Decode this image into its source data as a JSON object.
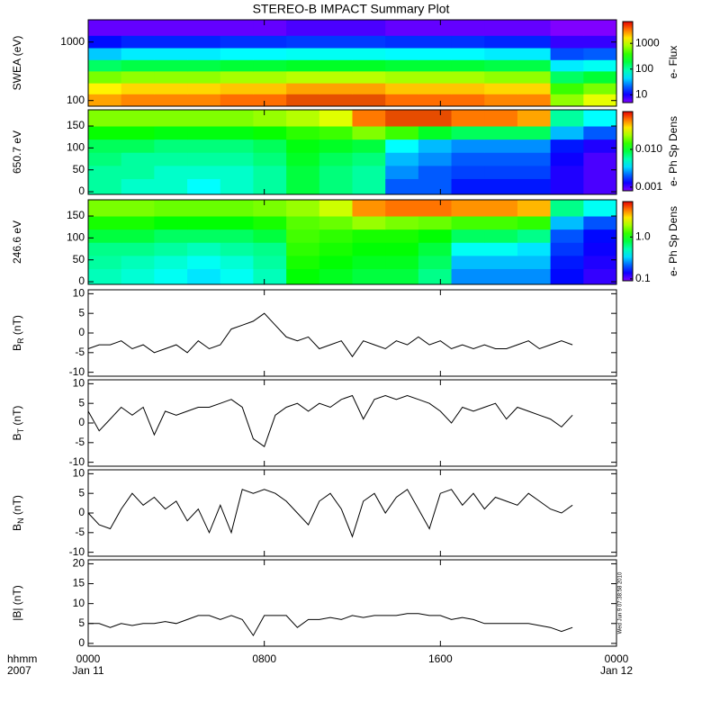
{
  "title": "STEREO-B IMPACT Summary Plot",
  "timestamp": "Wed Jun  9 07:38:58 2010",
  "x_axis": {
    "xlim": [
      0,
      24
    ],
    "xticks": [
      {
        "value": 0,
        "label": "0000"
      },
      {
        "value": 8,
        "label": "0800"
      },
      {
        "value": 16,
        "label": "1600"
      },
      {
        "value": 24,
        "label": "0000"
      }
    ],
    "date_labels": [
      {
        "value": 0,
        "label": "Jan 11"
      },
      {
        "value": 24,
        "label": "Jan 12"
      }
    ],
    "axis_labels": [
      "hhmm",
      "2007"
    ]
  },
  "chart_data": [
    {
      "type": "heatmap",
      "ylabel": "SWEA (eV)",
      "ylog": true,
      "ylim": [
        80,
        2400
      ],
      "yticks": [
        100,
        1000
      ],
      "x_edges": [
        0,
        1.5,
        3,
        4.5,
        6,
        7.5,
        9,
        10.5,
        12,
        13.5,
        15,
        16.5,
        18,
        19.5,
        21,
        22.5,
        24
      ],
      "y_edges": [
        80,
        130,
        200,
        320,
        500,
        800,
        1300,
        2400
      ],
      "values": [
        [
          2500,
          3000,
          3000,
          3000,
          3500,
          3500,
          4000,
          4000,
          4000,
          3500,
          3500,
          3500,
          3000,
          3000,
          700,
          1200
        ],
        [
          1500,
          1800,
          1800,
          1800,
          2000,
          2000,
          2500,
          2500,
          2500,
          2000,
          2000,
          2000,
          1800,
          1800,
          400,
          600
        ],
        [
          600,
          700,
          700,
          700,
          800,
          800,
          900,
          900,
          900,
          800,
          800,
          800,
          700,
          700,
          150,
          200
        ],
        [
          150,
          180,
          180,
          180,
          200,
          200,
          220,
          220,
          220,
          200,
          200,
          200,
          180,
          180,
          50,
          60
        ],
        [
          40,
          50,
          50,
          50,
          55,
          55,
          60,
          60,
          60,
          55,
          55,
          55,
          50,
          50,
          18,
          20
        ],
        [
          12,
          14,
          14,
          14,
          15,
          15,
          16,
          16,
          16,
          15,
          15,
          15,
          14,
          14,
          8,
          8
        ],
        [
          6,
          6,
          6,
          6,
          6,
          6,
          7,
          7,
          7,
          6,
          6,
          6,
          6,
          6,
          5,
          5
        ]
      ],
      "clim": [
        5,
        7000
      ],
      "cticks": [
        10,
        100,
        1000
      ],
      "clabel": "e- Flux"
    },
    {
      "type": "heatmap",
      "ylabel": "650.7 eV",
      "ylog": false,
      "ylim": [
        -6,
        187
      ],
      "yticks": [
        0,
        50,
        100,
        150
      ],
      "x_edges": [
        0,
        1.5,
        3,
        4.5,
        6,
        7.5,
        9,
        10.5,
        12,
        13.5,
        15,
        16.5,
        18,
        19.5,
        21,
        22.5,
        24
      ],
      "y_edges": [
        0,
        30,
        60,
        90,
        120,
        150,
        180
      ],
      "values": [
        [
          0.006,
          0.005,
          0.005,
          0.004,
          0.005,
          0.006,
          0.009,
          0.007,
          0.006,
          0.002,
          0.002,
          0.0015,
          0.0015,
          0.0015,
          0.0012,
          0.001
        ],
        [
          0.006,
          0.006,
          0.005,
          0.005,
          0.005,
          0.006,
          0.009,
          0.007,
          0.006,
          0.0025,
          0.002,
          0.0018,
          0.0018,
          0.0018,
          0.0012,
          0.001
        ],
        [
          0.007,
          0.006,
          0.006,
          0.006,
          0.006,
          0.007,
          0.01,
          0.008,
          0.007,
          0.003,
          0.0025,
          0.002,
          0.002,
          0.002,
          0.0013,
          0.001
        ],
        [
          0.008,
          0.008,
          0.007,
          0.007,
          0.007,
          0.008,
          0.011,
          0.01,
          0.009,
          0.004,
          0.003,
          0.0025,
          0.0025,
          0.0025,
          0.0015,
          0.0012
        ],
        [
          0.012,
          0.012,
          0.011,
          0.011,
          0.011,
          0.012,
          0.014,
          0.015,
          0.02,
          0.015,
          0.01,
          0.008,
          0.008,
          0.008,
          0.003,
          0.002
        ],
        [
          0.02,
          0.02,
          0.02,
          0.02,
          0.02,
          0.022,
          0.025,
          0.03,
          0.06,
          0.07,
          0.07,
          0.06,
          0.06,
          0.05,
          0.006,
          0.004
        ]
      ],
      "clim": [
        0.0008,
        0.1
      ],
      "cticks": [
        0.001,
        {
          "value": 0.01,
          "label": "0.010"
        }
      ],
      "clabel": "e- Ph Sp Dens"
    },
    {
      "type": "heatmap",
      "ylabel": "246.6 eV",
      "ylog": false,
      "ylim": [
        -6,
        187
      ],
      "yticks": [
        0,
        50,
        100,
        150
      ],
      "x_edges": [
        0,
        1.5,
        3,
        4.5,
        6,
        7.5,
        9,
        10.5,
        12,
        13.5,
        15,
        16.5,
        18,
        19.5,
        21,
        22.5,
        24
      ],
      "y_edges": [
        0,
        30,
        60,
        90,
        120,
        150,
        180
      ],
      "values": [
        [
          0.5,
          0.45,
          0.4,
          0.35,
          0.4,
          0.5,
          1.0,
          0.9,
          0.8,
          0.8,
          0.6,
          0.25,
          0.25,
          0.25,
          0.15,
          0.12
        ],
        [
          0.55,
          0.5,
          0.45,
          0.4,
          0.45,
          0.55,
          1.1,
          1.0,
          0.9,
          0.9,
          0.7,
          0.3,
          0.3,
          0.3,
          0.16,
          0.13
        ],
        [
          0.6,
          0.6,
          0.55,
          0.5,
          0.55,
          0.6,
          1.2,
          1.1,
          1.0,
          1.0,
          0.8,
          0.4,
          0.4,
          0.35,
          0.18,
          0.14
        ],
        [
          0.8,
          0.8,
          0.7,
          0.7,
          0.7,
          0.8,
          1.3,
          1.2,
          1.1,
          1.1,
          1.0,
          0.7,
          0.7,
          0.6,
          0.2,
          0.15
        ],
        [
          1.1,
          1.1,
          1.0,
          1.0,
          1.0,
          1.1,
          1.4,
          1.5,
          1.8,
          1.6,
          1.5,
          1.3,
          1.3,
          1.2,
          0.3,
          0.2
        ],
        [
          1.6,
          1.6,
          1.5,
          1.5,
          1.5,
          1.6,
          1.8,
          2.2,
          4,
          4.5,
          4.5,
          4,
          4,
          3.5,
          0.6,
          0.4
        ]
      ],
      "clim": [
        0.09,
        7
      ],
      "cticks": [
        0.1,
        {
          "value": 1,
          "label": "1.0"
        }
      ],
      "clabel": "e- Ph Sp Dens"
    },
    {
      "type": "line",
      "ylabel": "B",
      "ylabel_sub": "R",
      "ylabel_unit": "(nT)",
      "color": "#000000",
      "ylim": [
        -11,
        11
      ],
      "yticks": [
        -10,
        -5,
        0,
        5,
        10
      ],
      "x": [
        0,
        0.5,
        1,
        1.5,
        2,
        2.5,
        3,
        3.5,
        4,
        4.5,
        5,
        5.5,
        6,
        6.5,
        7,
        7.5,
        8,
        8.5,
        9,
        9.5,
        10,
        10.5,
        11,
        11.5,
        12,
        12.5,
        13,
        13.5,
        14,
        14.5,
        15,
        15.5,
        16,
        16.5,
        17,
        17.5,
        18,
        18.5,
        19,
        19.5,
        20,
        20.5,
        21,
        21.5,
        22
      ],
      "values": [
        -4,
        -3,
        -3,
        -2,
        -4,
        -3,
        -5,
        -4,
        -3,
        -5,
        -2,
        -4,
        -3,
        1,
        2,
        3,
        5,
        2,
        -1,
        -2,
        -1,
        -4,
        -3,
        -2,
        -6,
        -2,
        -3,
        -4,
        -2,
        -3,
        -1,
        -3,
        -2,
        -4,
        -3,
        -4,
        -3,
        -4,
        -4,
        -3,
        -2,
        -4,
        -3,
        -2,
        -3
      ]
    },
    {
      "type": "line",
      "ylabel": "B",
      "ylabel_sub": "T",
      "ylabel_unit": "(nT)",
      "color": "#000000",
      "ylim": [
        -11,
        11
      ],
      "yticks": [
        -10,
        -5,
        0,
        5,
        10
      ],
      "x": [
        0,
        0.5,
        1,
        1.5,
        2,
        2.5,
        3,
        3.5,
        4,
        4.5,
        5,
        5.5,
        6,
        6.5,
        7,
        7.5,
        8,
        8.5,
        9,
        9.5,
        10,
        10.5,
        11,
        11.5,
        12,
        12.5,
        13,
        13.5,
        14,
        14.5,
        15,
        15.5,
        16,
        16.5,
        17,
        17.5,
        18,
        18.5,
        19,
        19.5,
        20,
        20.5,
        21,
        21.5,
        22
      ],
      "values": [
        3,
        -2,
        1,
        4,
        2,
        4,
        -3,
        3,
        2,
        3,
        4,
        4,
        5,
        6,
        4,
        -4,
        -6,
        2,
        4,
        5,
        3,
        5,
        4,
        6,
        7,
        1,
        6,
        7,
        6,
        7,
        6,
        5,
        3,
        0,
        4,
        3,
        4,
        5,
        1,
        4,
        3,
        2,
        1,
        -1,
        2
      ]
    },
    {
      "type": "line",
      "ylabel": "B",
      "ylabel_sub": "N",
      "ylabel_unit": "(nT)",
      "color": "#000000",
      "ylim": [
        -11,
        11
      ],
      "yticks": [
        -10,
        -5,
        0,
        5,
        10
      ],
      "x": [
        0,
        0.5,
        1,
        1.5,
        2,
        2.5,
        3,
        3.5,
        4,
        4.5,
        5,
        5.5,
        6,
        6.5,
        7,
        7.5,
        8,
        8.5,
        9,
        9.5,
        10,
        10.5,
        11,
        11.5,
        12,
        12.5,
        13,
        13.5,
        14,
        14.5,
        15,
        15.5,
        16,
        16.5,
        17,
        17.5,
        18,
        18.5,
        19,
        19.5,
        20,
        20.5,
        21,
        21.5,
        22
      ],
      "values": [
        0,
        -3,
        -4,
        1,
        5,
        2,
        4,
        1,
        3,
        -2,
        1,
        -5,
        2,
        -5,
        6,
        5,
        6,
        5,
        3,
        0,
        -3,
        3,
        5,
        1,
        -6,
        3,
        5,
        0,
        4,
        6,
        1,
        -4,
        5,
        6,
        2,
        5,
        1,
        4,
        3,
        2,
        5,
        3,
        1,
        0,
        2
      ]
    },
    {
      "type": "line",
      "ylabel": "|B| (nT)",
      "color": "#000000",
      "ylim": [
        -0.7,
        21
      ],
      "yticks": [
        0,
        5,
        10,
        15,
        20
      ],
      "x": [
        0,
        0.5,
        1,
        1.5,
        2,
        2.5,
        3,
        3.5,
        4,
        4.5,
        5,
        5.5,
        6,
        6.5,
        7,
        7.5,
        8,
        8.5,
        9,
        9.5,
        10,
        10.5,
        11,
        11.5,
        12,
        12.5,
        13,
        13.5,
        14,
        14.5,
        15,
        15.5,
        16,
        16.5,
        17,
        17.5,
        18,
        18.5,
        19,
        19.5,
        20,
        20.5,
        21,
        21.5,
        22
      ],
      "values": [
        5,
        5,
        4,
        5,
        4.5,
        5,
        5,
        5.5,
        5,
        6,
        7,
        7,
        6,
        7,
        6,
        2,
        7,
        7,
        7,
        4,
        6,
        6,
        6.5,
        6,
        7,
        6.5,
        7,
        7,
        7,
        7.5,
        7.5,
        7,
        7,
        6,
        6.5,
        6,
        5,
        5,
        5,
        5,
        5,
        4.5,
        4,
        3,
        4
      ]
    }
  ]
}
